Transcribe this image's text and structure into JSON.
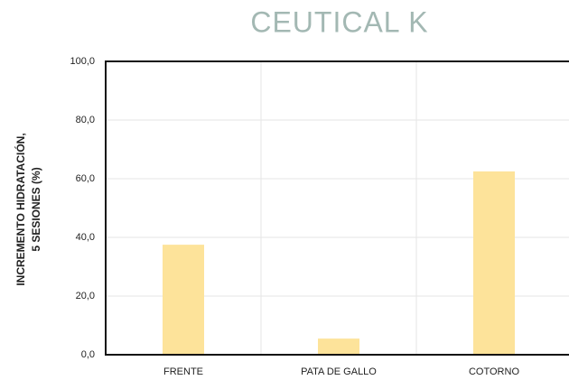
{
  "chart_data": {
    "type": "bar",
    "title": "CEUTICAL K",
    "y_label": [
      "INCREMENTO HIDRATACIÓN,",
      "5 SESIONES (%)"
    ],
    "categories": [
      "FRENTE",
      "PATA DE GALLO",
      "COTORNO"
    ],
    "values": [
      37.5,
      5.5,
      62.5
    ],
    "color": "#fde39a",
    "ylim": [
      0,
      100
    ],
    "yticks": [
      {
        "value": 0,
        "label": "0,0"
      },
      {
        "value": 20,
        "label": "20,0"
      },
      {
        "value": 40,
        "label": "40,0"
      },
      {
        "value": 60,
        "label": "60,0"
      },
      {
        "value": 80,
        "label": "80,0"
      },
      {
        "value": 100,
        "label": "100,0"
      }
    ],
    "grid": true
  }
}
